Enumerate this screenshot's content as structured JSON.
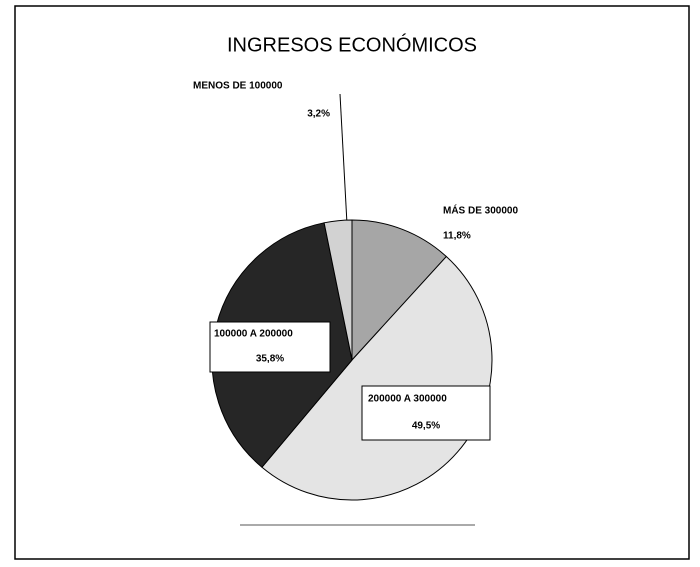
{
  "chart_data": {
    "type": "pie",
    "title": "INGRESOS ECONÓMICOS",
    "categories": [
      "MÁS DE 300000",
      "200000 A 300000",
      "100000 A 200000",
      "MENOS DE 100000"
    ],
    "values": [
      11.8,
      49.5,
      35.8,
      3.2
    ],
    "value_labels": [
      "11,8%",
      "49,5%",
      "35,8%",
      "3,2%"
    ],
    "colors": [
      "#a6a6a6",
      "#e4e4e4",
      "#262626",
      "#d2d2d2"
    ]
  }
}
